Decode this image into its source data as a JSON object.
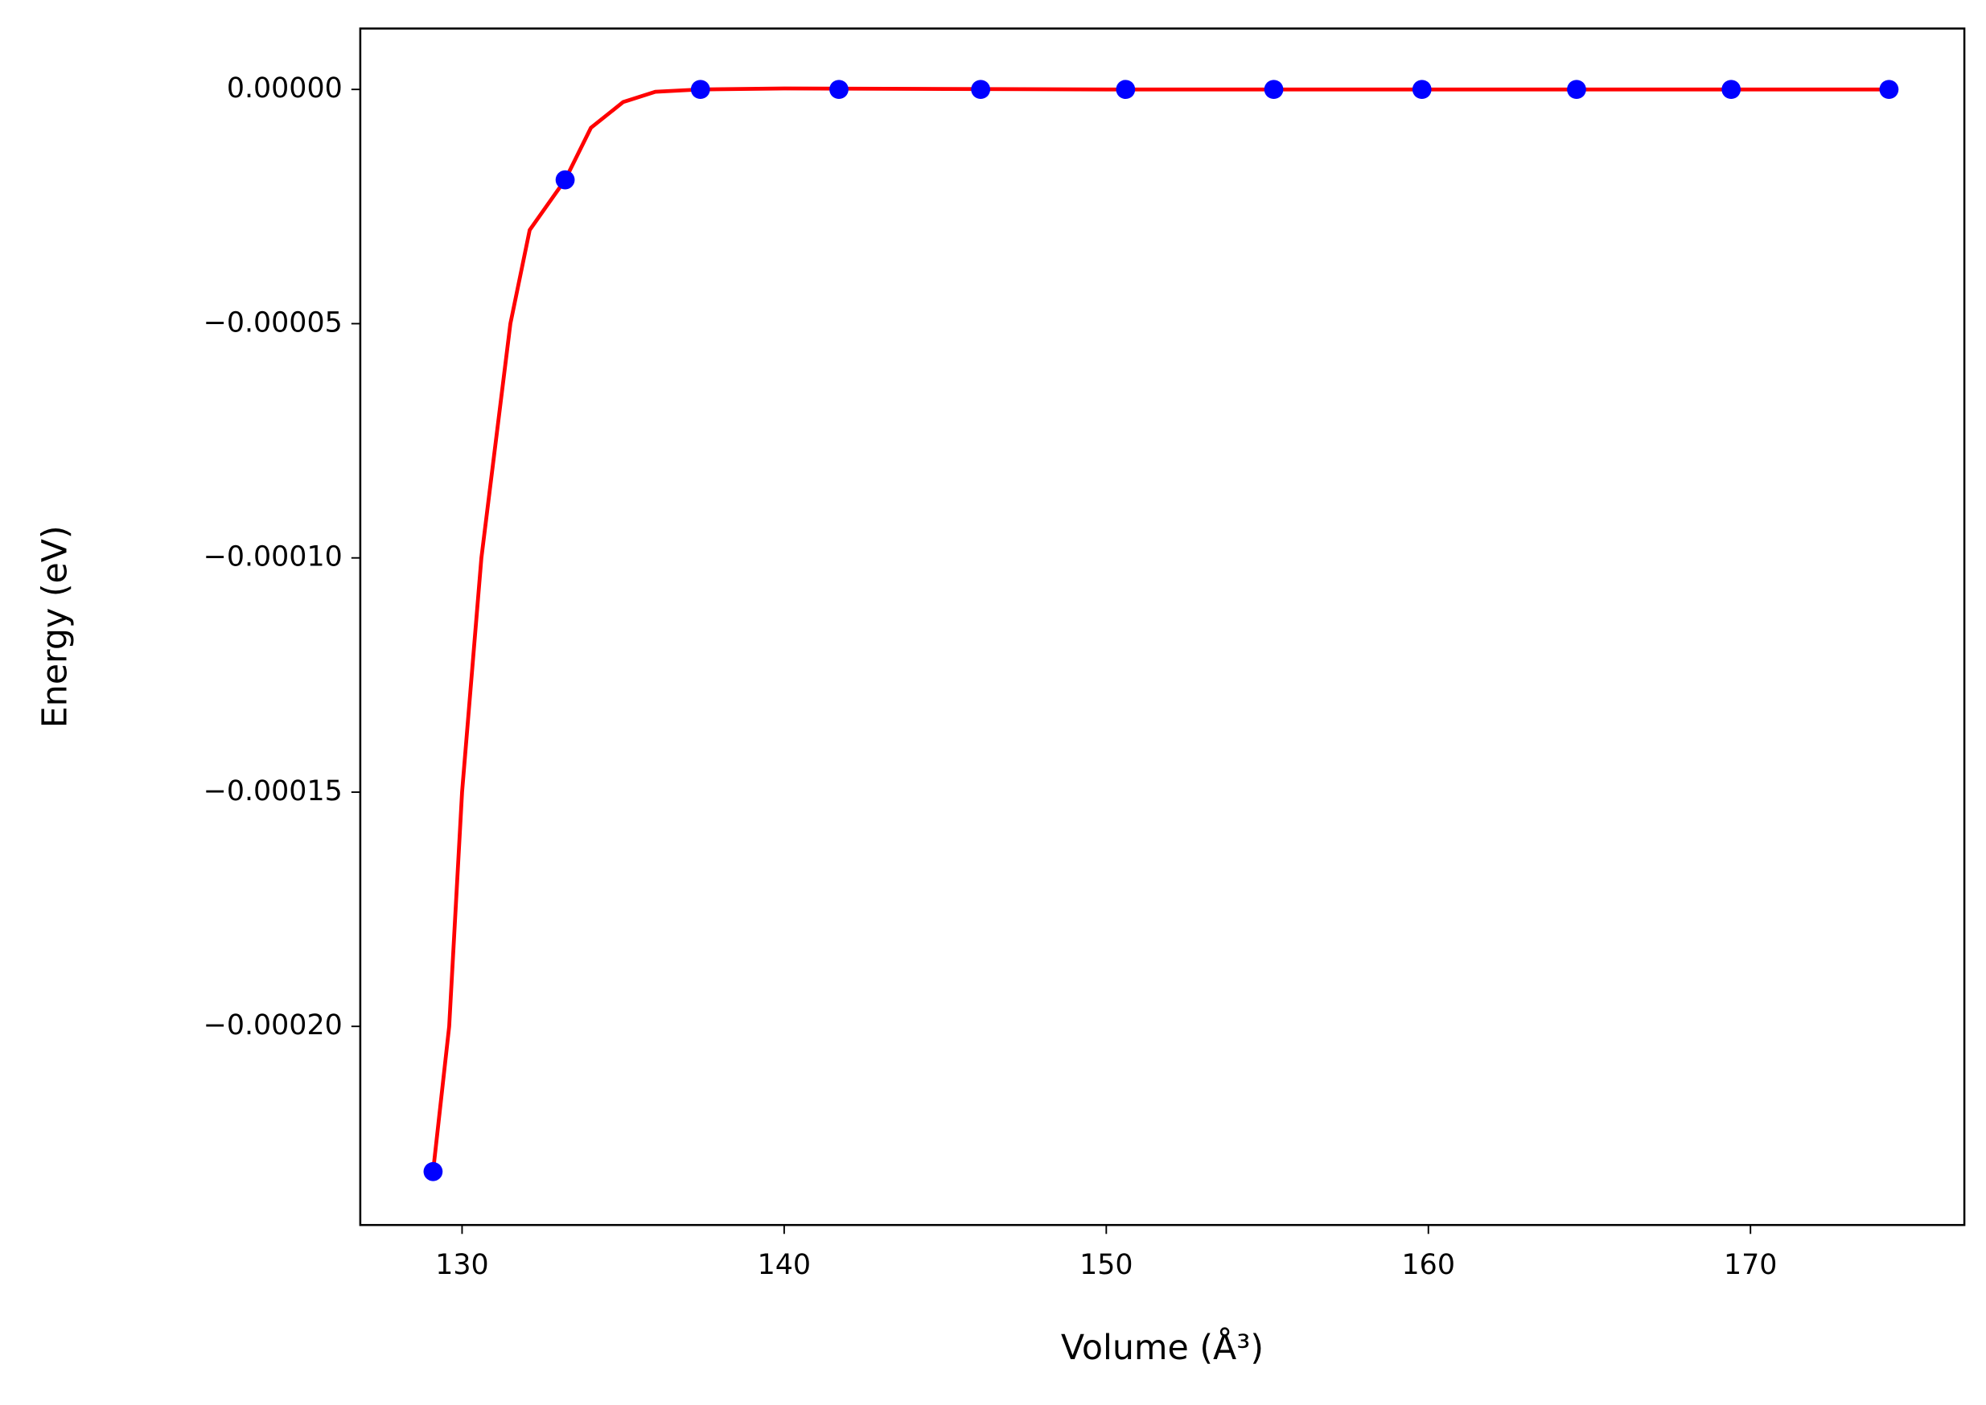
{
  "chart_data": {
    "type": "scatter",
    "x_label": "Volume (Å³)",
    "y_label": "Energy (eV)",
    "xlim": [
      126.84,
      176.64
    ],
    "ylim": [
      -0.0002424,
      1.3e-05
    ],
    "xticks": [
      130,
      140,
      150,
      160,
      170
    ],
    "yticks": [
      {
        "value": 0,
        "label": "0.00000"
      },
      {
        "value": -5e-05,
        "label": "−0.00005"
      },
      {
        "value": -0.0001,
        "label": "−0.00010"
      },
      {
        "value": -0.00015,
        "label": "−0.00015"
      },
      {
        "value": -0.0002,
        "label": "−0.00020"
      }
    ],
    "series": [
      {
        "mode": "line",
        "color": "#ff0000",
        "x": [
          129.1,
          129.6,
          130.0,
          130.6,
          131.5,
          132.1,
          133.2,
          134.0,
          135.0,
          136.0,
          137.4,
          140.0,
          145.0,
          150.0,
          160.0,
          174.3
        ],
        "values": [
          -0.000231,
          -0.0002,
          -0.00015,
          -0.0001,
          -5e-05,
          -3e-05,
          -1.93e-05,
          -8.2e-06,
          -2.7e-06,
          -5e-07,
          0,
          2e-07,
          1e-07,
          0,
          0,
          0
        ]
      },
      {
        "mode": "markers",
        "color": "#0000ff",
        "x": [
          129.1,
          133.2,
          137.4,
          141.7,
          146.1,
          150.6,
          155.2,
          159.8,
          164.6,
          169.4,
          174.3
        ],
        "values": [
          -0.000231,
          -1.93e-05,
          0,
          0,
          0,
          0,
          0,
          0,
          0,
          0,
          0
        ]
      }
    ]
  }
}
